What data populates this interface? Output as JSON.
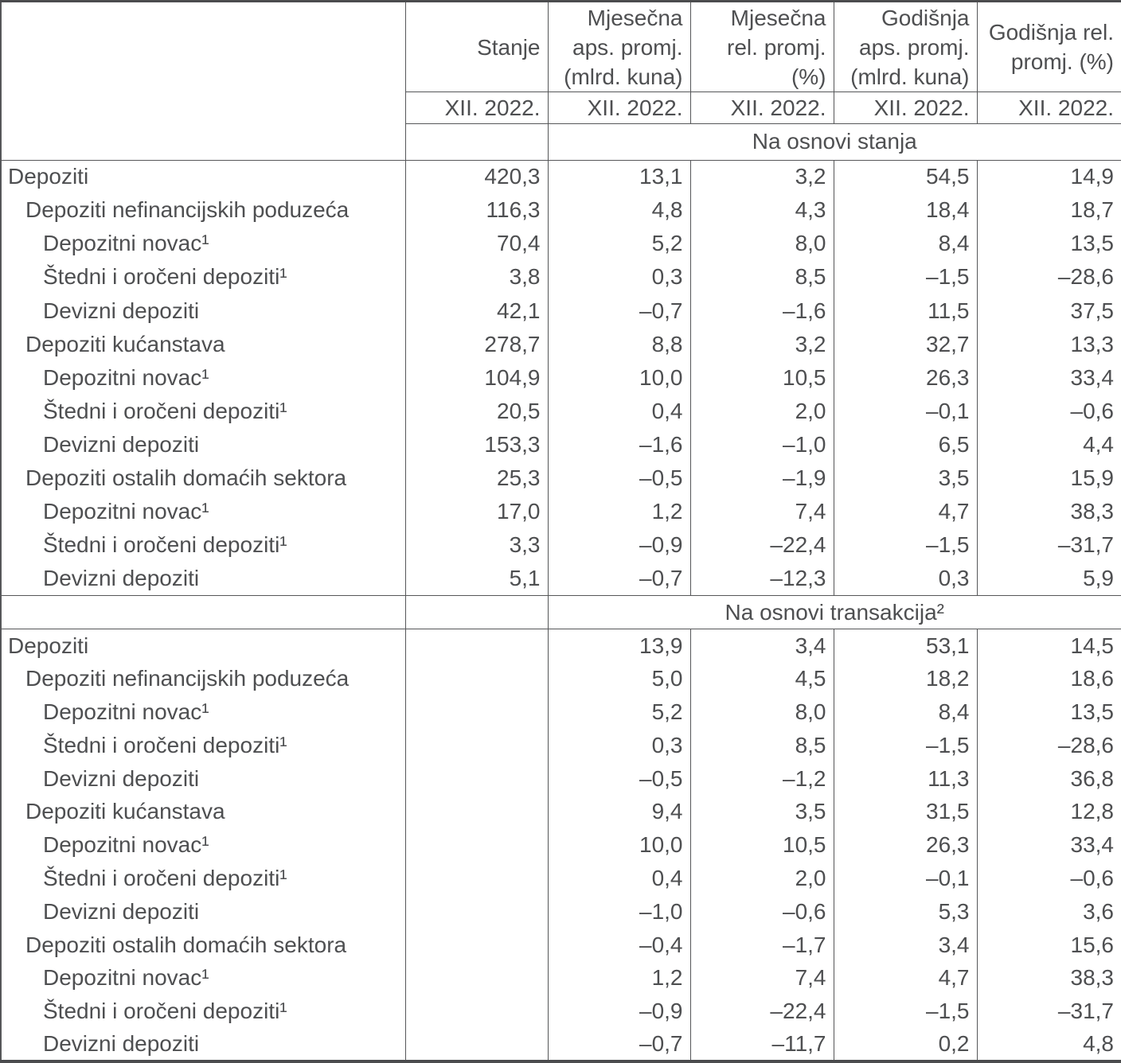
{
  "table": {
    "columns": [
      {
        "title": "Stanje",
        "period": "XII. 2022."
      },
      {
        "title": "Mjesečna\naps. promj.\n(mlrd. kuna)",
        "period": "XII. 2022."
      },
      {
        "title": "Mjesečna\nrel. promj.\n(%)",
        "period": "XII. 2022."
      },
      {
        "title": "Godišnja\naps. promj.\n(mlrd. kuna)",
        "period": "XII. 2022."
      },
      {
        "title": "Godišnja rel.\npromj. (%)",
        "period": "XII. 2022."
      }
    ],
    "sections": [
      {
        "band": "Na osnovi stanja",
        "rows": [
          {
            "label": "Depoziti",
            "indent": 0,
            "values": [
              "420,3",
              "13,1",
              "3,2",
              "54,5",
              "14,9"
            ]
          },
          {
            "label": "Depoziti nefinancijskih poduzeća",
            "indent": 1,
            "values": [
              "116,3",
              "4,8",
              "4,3",
              "18,4",
              "18,7"
            ]
          },
          {
            "label": "Depozitni novac¹",
            "indent": 2,
            "values": [
              "70,4",
              "5,2",
              "8,0",
              "8,4",
              "13,5"
            ]
          },
          {
            "label": "Štedni i oročeni depoziti¹",
            "indent": 2,
            "values": [
              "3,8",
              "0,3",
              "8,5",
              "–1,5",
              "–28,6"
            ]
          },
          {
            "label": "Devizni depoziti",
            "indent": 2,
            "values": [
              "42,1",
              "–0,7",
              "–1,6",
              "11,5",
              "37,5"
            ]
          },
          {
            "label": "Depoziti kućanstava",
            "indent": 1,
            "values": [
              "278,7",
              "8,8",
              "3,2",
              "32,7",
              "13,3"
            ]
          },
          {
            "label": "Depozitni novac¹",
            "indent": 2,
            "values": [
              "104,9",
              "10,0",
              "10,5",
              "26,3",
              "33,4"
            ]
          },
          {
            "label": "Štedni i oročeni depoziti¹",
            "indent": 2,
            "values": [
              "20,5",
              "0,4",
              "2,0",
              "–0,1",
              "–0,6"
            ]
          },
          {
            "label": "Devizni depoziti",
            "indent": 2,
            "values": [
              "153,3",
              "–1,6",
              "–1,0",
              "6,5",
              "4,4"
            ]
          },
          {
            "label": "Depoziti ostalih domaćih sektora",
            "indent": 1,
            "values": [
              "25,3",
              "–0,5",
              "–1,9",
              "3,5",
              "15,9"
            ]
          },
          {
            "label": "Depozitni novac¹",
            "indent": 2,
            "values": [
              "17,0",
              "1,2",
              "7,4",
              "4,7",
              "38,3"
            ]
          },
          {
            "label": "Štedni i oročeni depoziti¹",
            "indent": 2,
            "values": [
              "3,3",
              "–0,9",
              "–22,4",
              "–1,5",
              "–31,7"
            ]
          },
          {
            "label": "Devizni depoziti",
            "indent": 2,
            "values": [
              "5,1",
              "–0,7",
              "–12,3",
              "0,3",
              "5,9"
            ]
          }
        ]
      },
      {
        "band": "Na osnovi transakcija²",
        "rows": [
          {
            "label": "Depoziti",
            "indent": 0,
            "values": [
              "",
              "13,9",
              "3,4",
              "53,1",
              "14,5"
            ]
          },
          {
            "label": "Depoziti nefinancijskih poduzeća",
            "indent": 1,
            "values": [
              "",
              "5,0",
              "4,5",
              "18,2",
              "18,6"
            ]
          },
          {
            "label": "Depozitni novac¹",
            "indent": 2,
            "values": [
              "",
              "5,2",
              "8,0",
              "8,4",
              "13,5"
            ]
          },
          {
            "label": "Štedni i oročeni depoziti¹",
            "indent": 2,
            "values": [
              "",
              "0,3",
              "8,5",
              "–1,5",
              "–28,6"
            ]
          },
          {
            "label": "Devizni depoziti",
            "indent": 2,
            "values": [
              "",
              "–0,5",
              "–1,2",
              "11,3",
              "36,8"
            ]
          },
          {
            "label": "Depoziti kućanstava",
            "indent": 1,
            "values": [
              "",
              "9,4",
              "3,5",
              "31,5",
              "12,8"
            ]
          },
          {
            "label": "Depozitni novac¹",
            "indent": 2,
            "values": [
              "",
              "10,0",
              "10,5",
              "26,3",
              "33,4"
            ]
          },
          {
            "label": "Štedni i oročeni depoziti¹",
            "indent": 2,
            "values": [
              "",
              "0,4",
              "2,0",
              "–0,1",
              "–0,6"
            ]
          },
          {
            "label": "Devizni depoziti",
            "indent": 2,
            "values": [
              "",
              "–1,0",
              "–0,6",
              "5,3",
              "3,6"
            ]
          },
          {
            "label": "Depoziti ostalih domaćih sektora",
            "indent": 1,
            "values": [
              "",
              "–0,4",
              "–1,7",
              "3,4",
              "15,6"
            ]
          },
          {
            "label": "Depozitni novac¹",
            "indent": 2,
            "values": [
              "",
              "1,2",
              "7,4",
              "4,7",
              "38,3"
            ]
          },
          {
            "label": "Štedni i oročeni depoziti¹",
            "indent": 2,
            "values": [
              "",
              "–0,9",
              "–22,4",
              "–1,5",
              "–31,7"
            ]
          },
          {
            "label": "Devizni depoziti",
            "indent": 2,
            "values": [
              "",
              "–0,7",
              "–11,7",
              "0,2",
              "4,8"
            ]
          }
        ]
      }
    ],
    "colors": {
      "text": "#4e4f51",
      "thin_line": "#565759",
      "thick_line": "#4b4c4e",
      "background": "#ffffff"
    }
  }
}
